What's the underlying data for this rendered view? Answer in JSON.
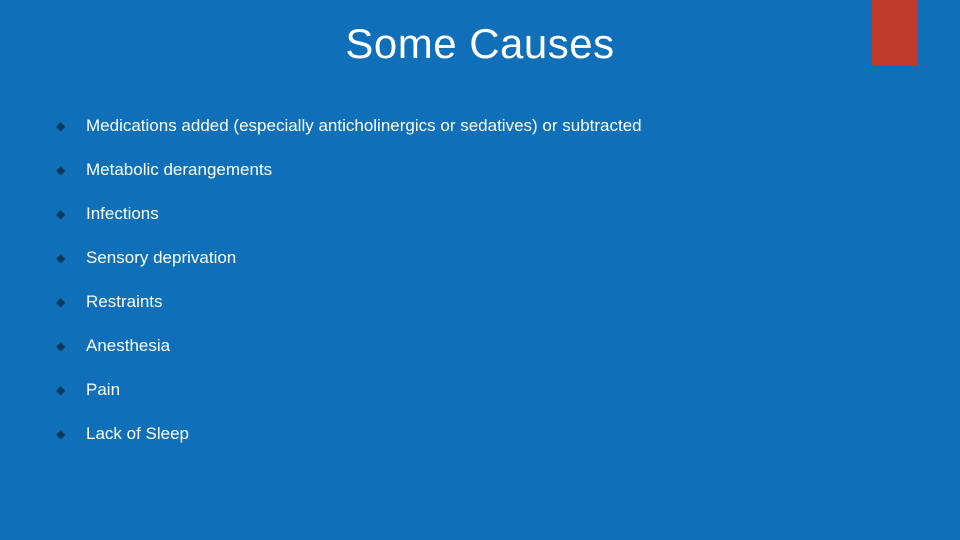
{
  "slide": {
    "title": "Some Causes",
    "background_color": "#0f6fb8",
    "accent_color": "#c03a2b",
    "text_color": "#ffffff",
    "bullet_color": "#083a5e",
    "title_fontsize": 42,
    "body_fontsize": 17,
    "bullets": [
      "Medications added (especially anticholinergics or sedatives) or subtracted",
      "Metabolic derangements",
      "Infections",
      "Sensory deprivation",
      "Restraints",
      "Anesthesia",
      "Pain",
      "Lack of Sleep"
    ]
  }
}
